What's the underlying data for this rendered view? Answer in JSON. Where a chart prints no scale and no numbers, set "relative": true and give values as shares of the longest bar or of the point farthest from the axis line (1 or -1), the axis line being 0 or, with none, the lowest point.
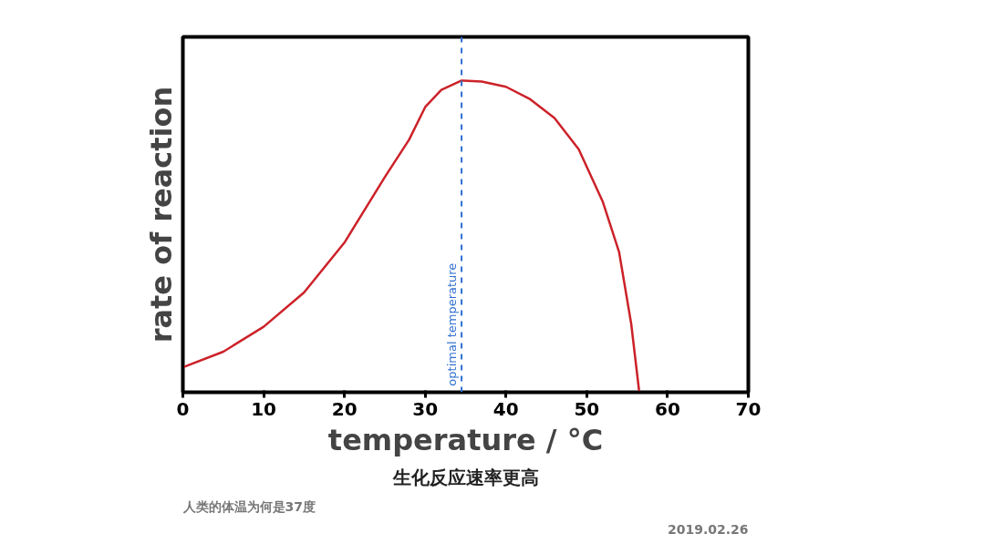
{
  "chart_data": {
    "type": "line",
    "relative": true,
    "xlabel": "temperature / °C",
    "ylabel": "rate of reaction",
    "x": [
      0,
      5,
      10,
      15,
      20,
      25,
      28,
      30,
      32,
      34.5,
      37,
      40,
      43,
      46,
      49,
      52,
      54,
      55.5,
      56.5
    ],
    "series": [
      {
        "color": "#cc2229",
        "values": [
          0.08,
          0.13,
          0.21,
          0.32,
          0.48,
          0.69,
          0.81,
          0.915,
          0.97,
          1.0,
          0.997,
          0.98,
          0.94,
          0.88,
          0.78,
          0.61,
          0.45,
          0.22,
          0
        ]
      }
    ],
    "xlim": [
      0,
      70
    ],
    "xticks": [
      0,
      10,
      20,
      30,
      40,
      50,
      60,
      70
    ],
    "tick_labels": "x",
    "grid": false,
    "ref_lines": [
      {
        "axis": "x",
        "value": 34.5,
        "label": "optimal temperature",
        "color": "#2f6fd0",
        "line_style": "dashed"
      }
    ],
    "annotations": [
      "生化反应速率更高",
      "人类的体温为何是37度",
      "2019.02.26"
    ]
  }
}
